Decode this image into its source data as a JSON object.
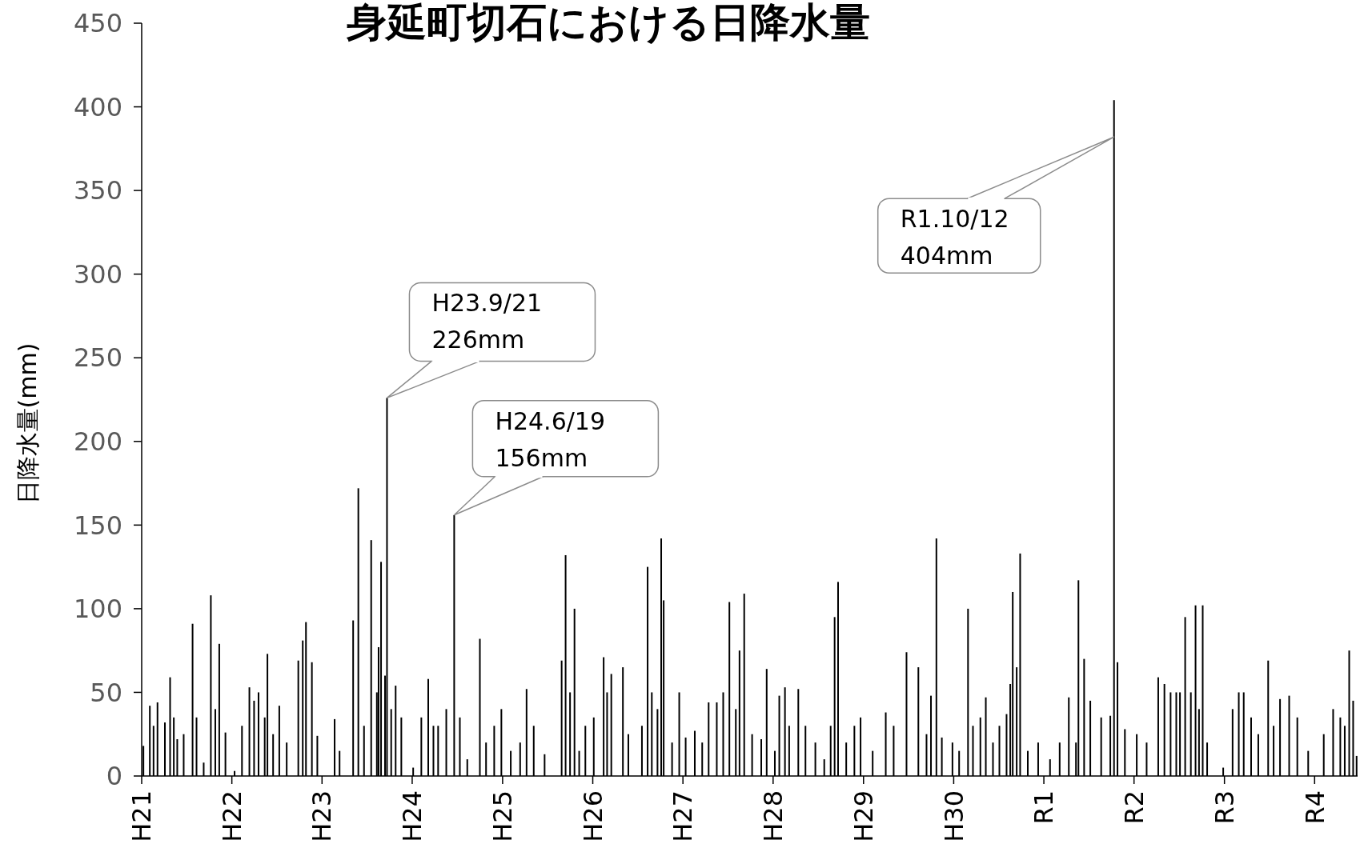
{
  "chart_data": {
    "type": "bar",
    "title": "身延町切石における日降水量",
    "ylabel": "日降水量(mm)",
    "color": "#000000",
    "x": [
      "2009-01-08",
      "2009-02-03",
      "2009-02-18",
      "2009-03-06",
      "2009-04-05",
      "2009-04-26",
      "2009-05-11",
      "2009-05-25",
      "2009-06-20",
      "2009-07-26",
      "2009-08-11",
      "2009-09-09",
      "2009-10-08",
      "2009-10-26",
      "2009-11-11",
      "2009-12-06",
      "2010-01-12",
      "2010-02-11",
      "2010-03-13",
      "2010-04-01",
      "2010-04-19",
      "2010-05-14",
      "2010-05-25",
      "2010-06-17",
      "2010-07-12",
      "2010-08-11",
      "2010-09-27",
      "2010-10-15",
      "2010-10-28",
      "2010-11-21",
      "2010-12-13",
      "2011-02-21",
      "2011-03-13",
      "2011-05-07",
      "2011-05-28",
      "2011-06-20",
      "2011-07-19",
      "2011-08-11",
      "2011-08-18",
      "2011-08-28",
      "2011-09-13",
      "2011-09-21",
      "2011-10-08",
      "2011-10-26",
      "2011-11-18",
      "2012-01-05",
      "2012-02-07",
      "2012-03-06",
      "2012-03-27",
      "2012-04-15",
      "2012-05-18",
      "2012-06-19",
      "2012-07-12",
      "2012-08-11",
      "2012-10-01",
      "2012-10-26",
      "2012-11-28",
      "2012-12-27",
      "2013-02-03",
      "2013-03-13",
      "2013-04-08",
      "2013-05-07",
      "2013-06-20",
      "2013-08-28",
      "2013-09-13",
      "2013-10-01",
      "2013-10-19",
      "2013-11-07",
      "2013-12-02",
      "2014-01-05",
      "2014-02-14",
      "2014-02-28",
      "2014-03-17",
      "2014-05-03",
      "2014-05-25",
      "2014-07-19",
      "2014-08-11",
      "2014-08-28",
      "2014-09-20",
      "2014-10-05",
      "2014-10-15",
      "2014-11-18",
      "2014-12-17",
      "2015-01-12",
      "2015-02-18",
      "2015-03-20",
      "2015-04-15",
      "2015-05-18",
      "2015-06-13",
      "2015-07-08",
      "2015-08-03",
      "2015-08-18",
      "2015-09-06",
      "2015-10-08",
      "2015-11-14",
      "2015-12-06",
      "2016-01-08",
      "2016-01-26",
      "2016-02-18",
      "2016-03-06",
      "2016-04-12",
      "2016-05-11",
      "2016-06-20",
      "2016-07-26",
      "2016-08-21",
      "2016-09-06",
      "2016-09-20",
      "2016-10-23",
      "2016-11-25",
      "2016-12-20",
      "2017-02-07",
      "2017-04-01",
      "2017-05-03",
      "2017-06-24",
      "2017-08-11",
      "2017-09-13",
      "2017-10-01",
      "2017-10-23",
      "2017-11-14",
      "2017-12-27",
      "2018-01-23",
      "2018-02-28",
      "2018-03-20",
      "2018-04-19",
      "2018-05-11",
      "2018-06-09",
      "2018-07-05",
      "2018-08-03",
      "2018-08-18",
      "2018-08-28",
      "2018-09-13",
      "2018-09-27",
      "2018-10-28",
      "2018-12-09",
      "2019-01-26",
      "2019-03-06",
      "2019-04-12",
      "2019-05-11",
      "2019-05-21",
      "2019-06-13",
      "2019-07-08",
      "2019-08-21",
      "2019-09-27",
      "2019-10-12",
      "2019-10-26",
      "2019-11-25",
      "2020-01-12",
      "2020-02-21",
      "2020-04-08",
      "2020-05-03",
      "2020-05-28",
      "2020-06-20",
      "2020-07-05",
      "2020-07-26",
      "2020-08-18",
      "2020-09-06",
      "2020-09-20",
      "2020-10-05",
      "2020-10-23",
      "2020-12-27",
      "2021-02-03",
      "2021-02-28",
      "2021-03-20",
      "2021-04-19",
      "2021-05-18",
      "2021-06-27",
      "2021-07-19",
      "2021-08-14",
      "2021-09-20",
      "2021-10-23",
      "2021-12-06",
      "2022-02-07",
      "2022-03-17",
      "2022-04-15",
      "2022-05-03",
      "2022-05-21",
      "2022-06-06",
      "2022-06-20"
    ],
    "values": [
      18,
      42,
      30,
      44,
      32,
      59,
      35,
      22,
      25,
      91,
      35,
      8,
      108,
      40,
      79,
      26,
      3,
      30,
      53,
      45,
      50,
      35,
      73,
      25,
      42,
      20,
      69,
      81,
      92,
      68,
      24,
      34,
      15,
      93,
      172,
      30,
      141,
      50,
      77,
      128,
      60,
      226,
      40,
      54,
      35,
      5,
      35,
      58,
      30,
      30,
      40,
      156,
      35,
      10,
      82,
      20,
      30,
      40,
      15,
      20,
      52,
      30,
      13,
      69,
      132,
      50,
      100,
      15,
      30,
      35,
      71,
      50,
      61,
      65,
      25,
      30,
      125,
      50,
      40,
      142,
      105,
      20,
      50,
      23,
      27,
      20,
      44,
      44,
      50,
      104,
      40,
      75,
      109,
      25,
      22,
      64,
      15,
      48,
      53,
      30,
      52,
      30,
      20,
      10,
      30,
      95,
      116,
      20,
      30,
      35,
      15,
      38,
      30,
      74,
      65,
      25,
      48,
      142,
      23,
      20,
      15,
      100,
      30,
      35,
      47,
      20,
      30,
      37,
      55,
      110,
      65,
      133,
      15,
      20,
      10,
      20,
      47,
      20,
      117,
      70,
      45,
      35,
      36,
      404,
      68,
      28,
      25,
      20,
      59,
      55,
      50,
      50,
      50,
      95,
      50,
      102,
      40,
      102,
      20,
      5,
      40,
      50,
      50,
      35,
      25,
      69,
      30,
      46,
      48,
      35,
      15,
      25,
      40,
      35,
      30,
      75,
      45,
      12
    ],
    "xlim": [
      "2009-01-01",
      "2022-06-24"
    ],
    "xticks": [
      {
        "value": "2009-01-01",
        "label": "H21"
      },
      {
        "value": "2010-01-01",
        "label": "H22"
      },
      {
        "value": "2011-01-01",
        "label": "H23"
      },
      {
        "value": "2012-01-01",
        "label": "H24"
      },
      {
        "value": "2013-01-01",
        "label": "H25"
      },
      {
        "value": "2014-01-01",
        "label": "H26"
      },
      {
        "value": "2015-01-01",
        "label": "H27"
      },
      {
        "value": "2016-01-01",
        "label": "H28"
      },
      {
        "value": "2017-01-01",
        "label": "H29"
      },
      {
        "value": "2018-01-01",
        "label": "H30"
      },
      {
        "value": "2019-01-01",
        "label": "R1"
      },
      {
        "value": "2020-01-01",
        "label": "R2"
      },
      {
        "value": "2021-01-01",
        "label": "R3"
      },
      {
        "value": "2022-01-01",
        "label": "R4"
      }
    ],
    "ylim": [
      0,
      450
    ],
    "yticks": [
      0,
      50,
      100,
      150,
      200,
      250,
      300,
      350,
      400,
      450
    ],
    "annotations": [
      {
        "text": "H23.9/21\n226mm",
        "x": "2011-09-21",
        "y": 226
      },
      {
        "text": "H24.6/19\n156mm",
        "x": "2012-06-19",
        "y": 156
      },
      {
        "text": "R1.10/12\n404mm",
        "x": "2019-10-12",
        "y": 382
      }
    ]
  }
}
